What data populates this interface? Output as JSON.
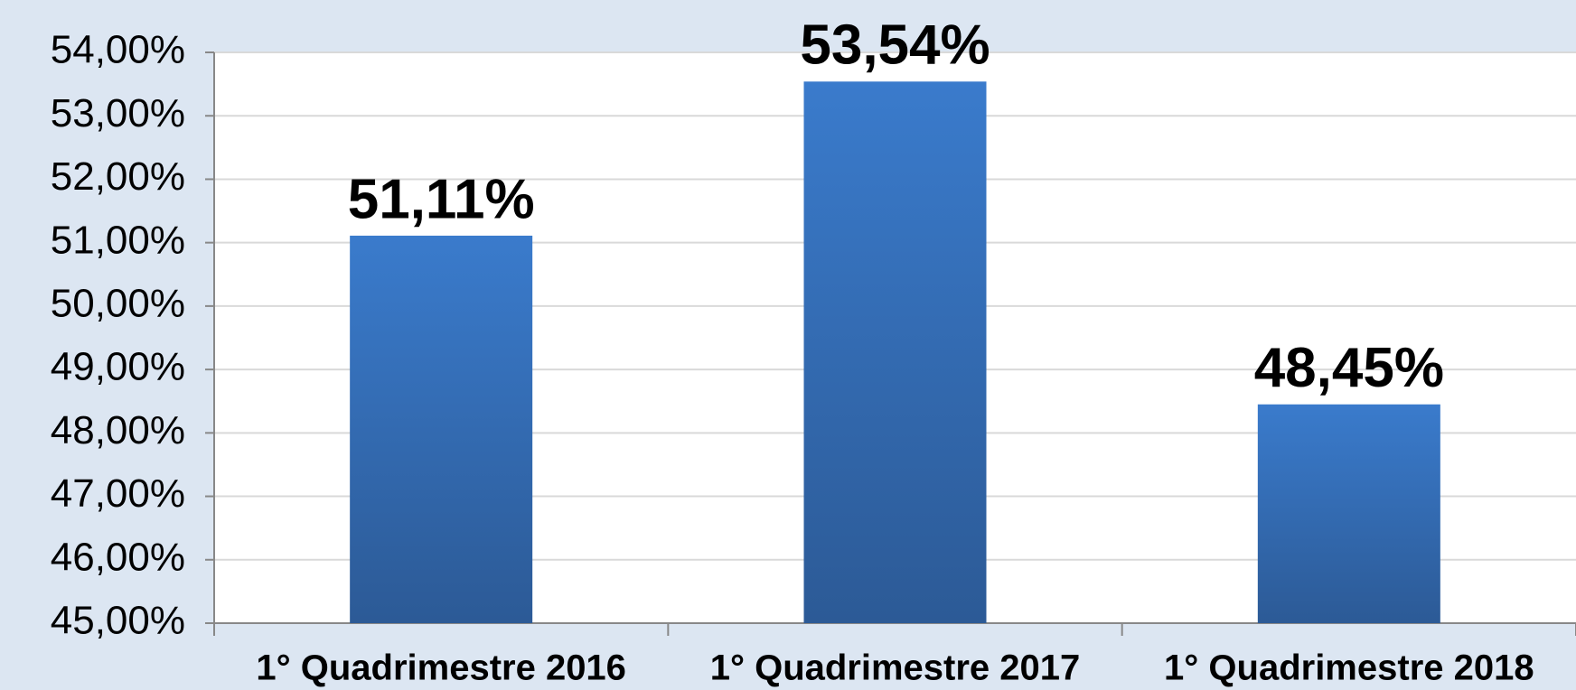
{
  "chart_data": {
    "type": "bar",
    "categories": [
      "1° Quadrimestre 2016",
      "1° Quadrimestre 2017",
      "1° Quadrimestre 2018"
    ],
    "values": [
      51.11,
      53.54,
      48.45
    ],
    "value_labels": [
      "51,11%",
      "53,54%",
      "48,45%"
    ],
    "color": "#3a7bcc",
    "ylim": [
      45,
      54
    ],
    "yticks": [
      {
        "value": 45,
        "label": "45,00%"
      },
      {
        "value": 46,
        "label": "46,00%"
      },
      {
        "value": 47,
        "label": "47,00%"
      },
      {
        "value": 48,
        "label": "48,00%"
      },
      {
        "value": 49,
        "label": "49,00%"
      },
      {
        "value": 50,
        "label": "50,00%"
      },
      {
        "value": 51,
        "label": "51,00%"
      },
      {
        "value": 52,
        "label": "52,00%"
      },
      {
        "value": 53,
        "label": "53,00%"
      },
      {
        "value": 54,
        "label": "54,00%"
      }
    ],
    "grid": true
  }
}
